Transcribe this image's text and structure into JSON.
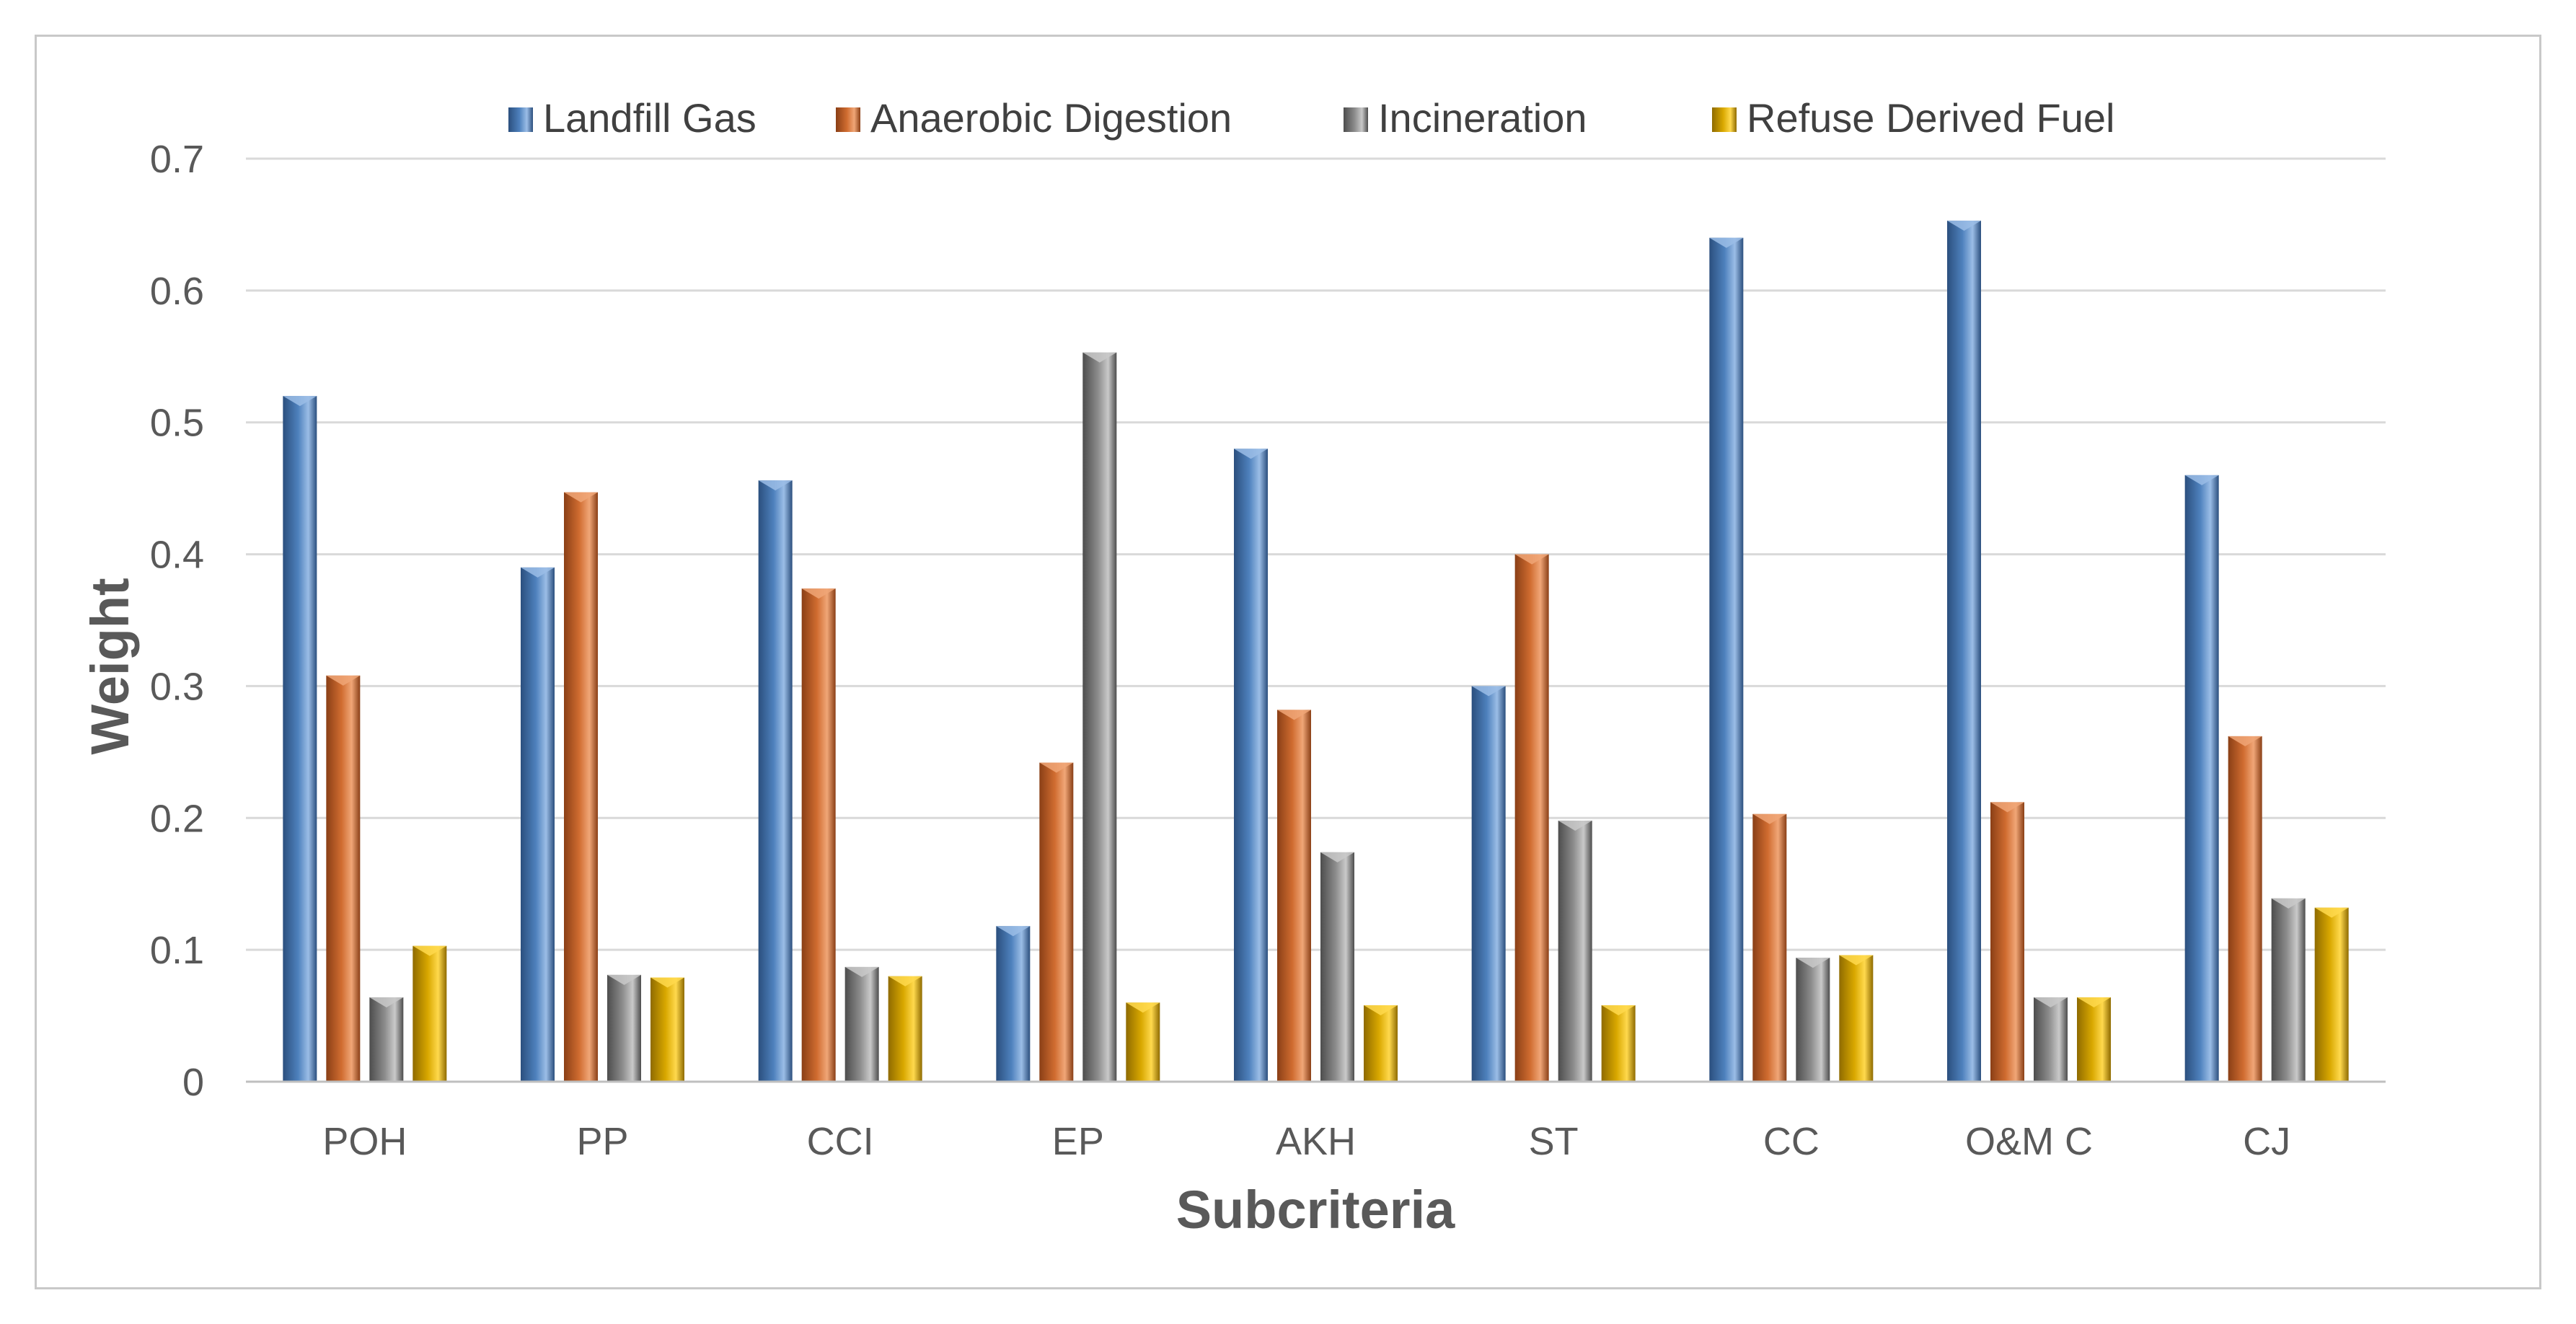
{
  "chart_data": {
    "type": "bar",
    "title": "",
    "xlabel": "Subcriteria",
    "ylabel": "Weight",
    "ylim": [
      0,
      0.7
    ],
    "yticks": [
      "0",
      "0.1",
      "0.2",
      "0.3",
      "0.4",
      "0.5",
      "0.6",
      "0.7"
    ],
    "ytick_values": [
      0,
      0.1,
      0.2,
      0.3,
      0.4,
      0.5,
      0.6,
      0.7
    ],
    "grid": true,
    "legend_position": "top",
    "categories": [
      "POH",
      "PP",
      "CCI",
      "EP",
      "AKH",
      "ST",
      "CC",
      "O&M C",
      "CJ"
    ],
    "series": [
      {
        "name": "Landfill Gas",
        "color": "#4e81bd",
        "dark": "#2b4f7e",
        "light": "#9bbde6",
        "values": [
          0.52,
          0.39,
          0.456,
          0.118,
          0.48,
          0.3,
          0.64,
          0.653,
          0.46
        ]
      },
      {
        "name": "Anaerobic Digestion",
        "color": "#d06c30",
        "dark": "#8a3f16",
        "light": "#f0a677",
        "values": [
          0.308,
          0.447,
          0.374,
          0.242,
          0.282,
          0.4,
          0.203,
          0.212,
          0.262
        ]
      },
      {
        "name": "Incineration",
        "color": "#8c8c8c",
        "dark": "#4d4d4d",
        "light": "#c9c9c9",
        "values": [
          0.064,
          0.081,
          0.087,
          0.553,
          0.174,
          0.198,
          0.094,
          0.064,
          0.139
        ]
      },
      {
        "name": "Refuse Derived Fuel",
        "color": "#d9a800",
        "dark": "#8f6b00",
        "light": "#ffd94d",
        "values": [
          0.103,
          0.079,
          0.08,
          0.06,
          0.058,
          0.058,
          0.096,
          0.064,
          0.132
        ]
      }
    ]
  }
}
